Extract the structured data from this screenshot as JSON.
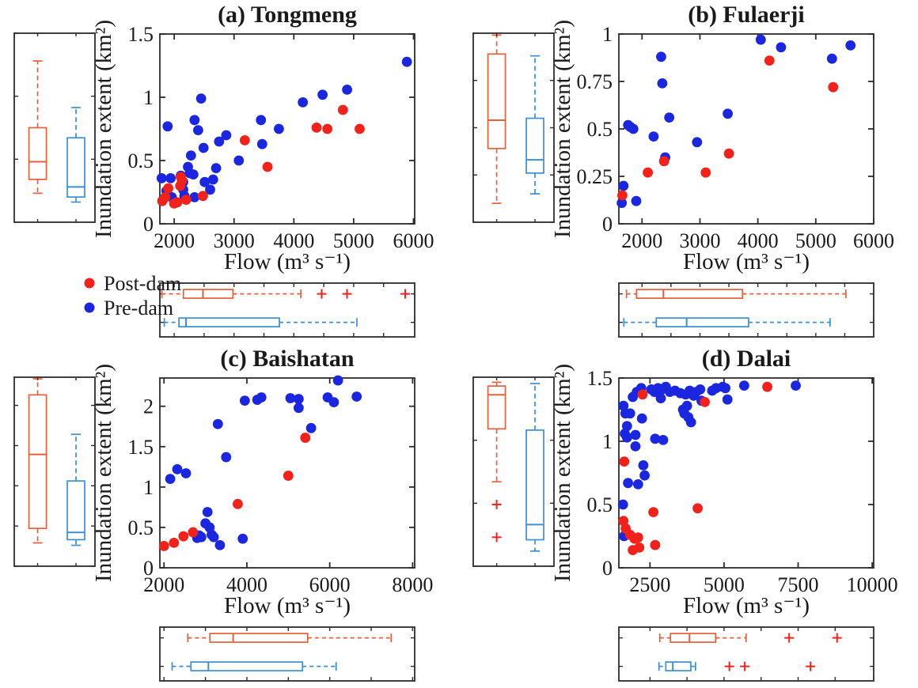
{
  "figure": {
    "background": "#ffffff",
    "axis_color": "#2b2b2b",
    "text_color": "#1a1a1a",
    "legend": {
      "items": [
        {
          "label": "Post-dam",
          "color": "#f2221a"
        },
        {
          "label": "Pre-dam",
          "color": "#1a26df"
        }
      ]
    },
    "box_colors": {
      "post": "#e2613c",
      "pre": "#3b8fd2",
      "outlier": "#f2221a"
    }
  },
  "chart_data": [
    {
      "id": "a",
      "type": "scatter",
      "title": "(a) Tongmeng",
      "xlabel": "Flow (m³ s⁻¹)",
      "ylabel": "Inundation extent (km²)",
      "xlim": [
        1760,
        6020
      ],
      "ylim": [
        0,
        1.5
      ],
      "xticks": [
        2000,
        3000,
        4000,
        5000,
        6000
      ],
      "yticks": [
        0,
        0.5,
        1,
        1.5
      ],
      "ytick_labels": [
        "0",
        "0.5",
        "1",
        "1.5"
      ],
      "legend_visible": true,
      "series": [
        {
          "name": "Pre-dam",
          "points": [
            [
              1790,
              0.36
            ],
            [
              1870,
              0.26
            ],
            [
              1890,
              0.77
            ],
            [
              1940,
              0.36
            ],
            [
              1960,
              0.21
            ],
            [
              2110,
              0.38
            ],
            [
              2150,
              0.33
            ],
            [
              2150,
              0.27
            ],
            [
              2170,
              0.22
            ],
            [
              2230,
              0.45
            ],
            [
              2260,
              0.4
            ],
            [
              2280,
              0.54
            ],
            [
              2320,
              0.39
            ],
            [
              2340,
              0.21
            ],
            [
              2340,
              0.82
            ],
            [
              2400,
              0.74
            ],
            [
              2450,
              0.99
            ],
            [
              2490,
              0.6
            ],
            [
              2510,
              0.33
            ],
            [
              2600,
              0.27
            ],
            [
              2650,
              0.35
            ],
            [
              2700,
              0.44
            ],
            [
              2750,
              0.65
            ],
            [
              2870,
              0.7
            ],
            [
              3080,
              0.5
            ],
            [
              3450,
              0.82
            ],
            [
              3470,
              0.63
            ],
            [
              3750,
              0.75
            ],
            [
              4150,
              0.96
            ],
            [
              4480,
              1.02
            ],
            [
              4890,
              1.06
            ],
            [
              5890,
              1.28
            ]
          ]
        },
        {
          "name": "Post-dam",
          "points": [
            [
              1800,
              0.18
            ],
            [
              1850,
              0.21
            ],
            [
              1900,
              0.28
            ],
            [
              2000,
              0.16
            ],
            [
              2050,
              0.17
            ],
            [
              2100,
              0.3
            ],
            [
              2110,
              0.37
            ],
            [
              2130,
              0.34
            ],
            [
              2200,
              0.19
            ],
            [
              2480,
              0.22
            ],
            [
              3180,
              0.66
            ],
            [
              3560,
              0.45
            ],
            [
              4380,
              0.76
            ],
            [
              4560,
              0.75
            ],
            [
              4820,
              0.9
            ],
            [
              5100,
              0.75
            ]
          ]
        }
      ],
      "extent_boxplot": {
        "post": {
          "whisker_low": 0.23,
          "q1": 0.34,
          "median": 0.48,
          "q3": 0.75,
          "whisker_high": 1.28,
          "outliers": []
        },
        "pre": {
          "whisker_low": 0.16,
          "q1": 0.2,
          "median": 0.28,
          "q3": 0.67,
          "whisker_high": 0.91,
          "outliers": []
        }
      },
      "flow_boxplot": {
        "post": {
          "whisker_low": 1794,
          "q1": 2153,
          "median": 2480,
          "q3": 2982,
          "whisker_high": 4117,
          "outliers": [
            4465,
            4889,
            5861
          ]
        },
        "pre": {
          "whisker_low": 1834,
          "q1": 2079,
          "median": 2197,
          "q3": 3758,
          "whisker_high": 5054,
          "outliers": []
        }
      }
    },
    {
      "id": "b",
      "type": "scatter",
      "title": "(b) Fulaerji",
      "xlabel": "Flow (m³ s⁻¹)",
      "ylabel": "Inundation extent (km²)",
      "xlim": [
        1600,
        6000
      ],
      "ylim": [
        0,
        1
      ],
      "xticks": [
        2000,
        3000,
        4000,
        5000,
        6000
      ],
      "yticks": [
        0,
        0.25,
        0.5,
        0.75,
        1
      ],
      "ytick_labels": [
        "0",
        "0.25",
        "0.5",
        "0.75",
        "1"
      ],
      "legend_visible": false,
      "series": [
        {
          "name": "Pre-dam",
          "points": [
            [
              1650,
              0.11
            ],
            [
              1680,
              0.2
            ],
            [
              1760,
              0.52
            ],
            [
              1800,
              0.51
            ],
            [
              1850,
              0.5
            ],
            [
              1900,
              0.12
            ],
            [
              2200,
              0.46
            ],
            [
              2330,
              0.88
            ],
            [
              2350,
              0.74
            ],
            [
              2400,
              0.35
            ],
            [
              2470,
              0.56
            ],
            [
              2950,
              0.43
            ],
            [
              3480,
              0.58
            ],
            [
              4050,
              0.97
            ],
            [
              4400,
              0.93
            ],
            [
              5280,
              0.87
            ],
            [
              5600,
              0.94
            ]
          ]
        },
        {
          "name": "Post-dam",
          "points": [
            [
              1660,
              0.15
            ],
            [
              2100,
              0.27
            ],
            [
              2380,
              0.33
            ],
            [
              3100,
              0.27
            ],
            [
              3500,
              0.37
            ],
            [
              4200,
              0.86
            ],
            [
              5300,
              0.72
            ]
          ]
        }
      ],
      "extent_boxplot": {
        "post": {
          "whisker_low": 0.1,
          "q1": 0.39,
          "median": 0.54,
          "q3": 0.89,
          "whisker_high": 0.99,
          "outliers": []
        },
        "pre": {
          "whisker_low": 0.15,
          "q1": 0.26,
          "median": 0.33,
          "q3": 0.55,
          "whisker_high": 0.88,
          "outliers": []
        }
      },
      "flow_boxplot": {
        "post": {
          "whisker_low": 1732,
          "q1": 1905,
          "median": 2369,
          "q3": 3735,
          "whisker_high": 5520,
          "outliers": []
        },
        "pre": {
          "whisker_low": 1686,
          "q1": 2246,
          "median": 2770,
          "q3": 3840,
          "whisker_high": 5247,
          "outliers": []
        }
      }
    },
    {
      "id": "c",
      "type": "scatter",
      "title": "(c) Baishatan",
      "xlabel": "Flow (m³ s⁻¹)",
      "ylabel": "Inundation extent (km²)",
      "xlim": [
        1900,
        8050
      ],
      "ylim": [
        0,
        2.35
      ],
      "xticks": [
        2000,
        4000,
        6000,
        8000
      ],
      "yticks": [
        0,
        0.5,
        1,
        1.5,
        2
      ],
      "ytick_labels": [
        "0",
        "0.5",
        "1",
        "1.5",
        "2"
      ],
      "legend_visible": false,
      "series": [
        {
          "name": "Pre-dam",
          "points": [
            [
              2150,
              1.1
            ],
            [
              2320,
              1.22
            ],
            [
              2530,
              1.17
            ],
            [
              2800,
              0.37
            ],
            [
              2850,
              0.4
            ],
            [
              2900,
              0.38
            ],
            [
              3000,
              0.55
            ],
            [
              3050,
              0.69
            ],
            [
              3100,
              0.5
            ],
            [
              3150,
              0.41
            ],
            [
              3200,
              0.38
            ],
            [
              3300,
              1.78
            ],
            [
              3350,
              0.28
            ],
            [
              3500,
              1.37
            ],
            [
              3900,
              0.36
            ],
            [
              3950,
              2.07
            ],
            [
              4250,
              2.08
            ],
            [
              4350,
              2.11
            ],
            [
              5050,
              2.1
            ],
            [
              5250,
              2.09
            ],
            [
              5250,
              1.98
            ],
            [
              5550,
              1.73
            ],
            [
              5950,
              2.11
            ],
            [
              6100,
              2.05
            ],
            [
              6200,
              2.32
            ],
            [
              6650,
              2.12
            ]
          ]
        },
        {
          "name": "Post-dam",
          "points": [
            [
              2000,
              0.27
            ],
            [
              2240,
              0.31
            ],
            [
              2470,
              0.39
            ],
            [
              2700,
              0.44
            ],
            [
              3780,
              0.79
            ],
            [
              5000,
              1.14
            ],
            [
              5410,
              1.61
            ]
          ]
        }
      ],
      "extent_boxplot": {
        "post": {
          "whisker_low": 0.29,
          "q1": 0.47,
          "median": 1.39,
          "q3": 2.13,
          "whisker_high": 2.33,
          "outliers": []
        },
        "pre": {
          "whisker_low": 0.26,
          "q1": 0.33,
          "median": 0.42,
          "q3": 1.06,
          "whisker_high": 1.64,
          "outliers": []
        }
      },
      "flow_boxplot": {
        "post": {
          "whisker_low": 2574,
          "q1": 3108,
          "median": 3669,
          "q3": 5468,
          "whisker_high": 7483,
          "outliers": []
        },
        "pre": {
          "whisker_low": 2196,
          "q1": 2650,
          "median": 3071,
          "q3": 5342,
          "whisker_high": 6154,
          "outliers": []
        }
      }
    },
    {
      "id": "d",
      "type": "scatter",
      "title": "(d) Dalai",
      "xlabel": "Flow (m³ s⁻¹)",
      "ylabel": "Inundation extent (km²)",
      "xlim": [
        1450,
        10050
      ],
      "ylim": [
        0,
        1.5
      ],
      "xticks": [
        2500,
        5000,
        7500,
        10000
      ],
      "yticks": [
        0,
        0.5,
        1,
        1.5
      ],
      "ytick_labels": [
        "0",
        "0.5",
        "1",
        "1.5"
      ],
      "legend_visible": false,
      "series": [
        {
          "name": "Pre-dam",
          "points": [
            [
              1590,
              0.5
            ],
            [
              1605,
              1.28
            ],
            [
              1625,
              0.25
            ],
            [
              1650,
              1.06
            ],
            [
              1670,
              1.22
            ],
            [
              1725,
              1.12
            ],
            [
              1725,
              1.03
            ],
            [
              1760,
              0.67
            ],
            [
              1830,
              1.22
            ],
            [
              1920,
              1.35
            ],
            [
              2010,
              1.05
            ],
            [
              2010,
              0.96
            ],
            [
              2055,
              1.39
            ],
            [
              2100,
              0.66
            ],
            [
              2205,
              1.42
            ],
            [
              2230,
              1.18
            ],
            [
              2275,
              0.81
            ],
            [
              2320,
              0.73
            ],
            [
              2545,
              1.41
            ],
            [
              2650,
              1.39
            ],
            [
              2675,
              1.02
            ],
            [
              2770,
              1.42
            ],
            [
              2865,
              1.34
            ],
            [
              2900,
              1.41
            ],
            [
              2945,
              1.01
            ],
            [
              3035,
              1.43
            ],
            [
              3170,
              1.39
            ],
            [
              3345,
              1.4
            ],
            [
              3525,
              1.38
            ],
            [
              3615,
              1.25
            ],
            [
              3660,
              1.22
            ],
            [
              3705,
              1.37
            ],
            [
              3750,
              1.28
            ],
            [
              3795,
              1.19
            ],
            [
              3840,
              1.4
            ],
            [
              3885,
              1.15
            ],
            [
              3975,
              1.36
            ],
            [
              4060,
              1.39
            ],
            [
              4195,
              1.41
            ],
            [
              4240,
              1.32
            ],
            [
              4600,
              1.4
            ],
            [
              4730,
              1.42
            ],
            [
              4955,
              1.43
            ],
            [
              5045,
              1.42
            ],
            [
              5115,
              1.33
            ],
            [
              5680,
              1.44
            ],
            [
              7420,
              1.44
            ]
          ]
        },
        {
          "name": "Post-dam",
          "points": [
            [
              1605,
              0.37
            ],
            [
              1630,
              0.84
            ],
            [
              1680,
              0.31
            ],
            [
              1830,
              0.26
            ],
            [
              1920,
              0.14
            ],
            [
              1980,
              0.23
            ],
            [
              2100,
              0.24
            ],
            [
              2140,
              0.16
            ],
            [
              2250,
              1.37
            ],
            [
              2615,
              0.44
            ],
            [
              2675,
              0.18
            ],
            [
              4110,
              0.47
            ],
            [
              4350,
              1.31
            ],
            [
              6460,
              1.43
            ]
          ]
        }
      ],
      "extent_boxplot": {
        "post": {
          "whisker_low": 0.67,
          "q1": 1.09,
          "median": 1.36,
          "q3": 1.43,
          "whisker_high": 1.46,
          "outliers": [
            0.49,
            0.23
          ]
        },
        "pre": {
          "whisker_low": 0.12,
          "q1": 0.21,
          "median": 0.33,
          "q3": 1.08,
          "whisker_high": 1.45,
          "outliers": []
        }
      },
      "flow_boxplot": {
        "post": {
          "whisker_low": 2831,
          "q1": 3192,
          "median": 3834,
          "q3": 4716,
          "whisker_high": 5745,
          "outliers": [
            7197,
            8815
          ]
        },
        "pre": {
          "whisker_low": 2804,
          "q1": 3034,
          "median": 3271,
          "q3": 3879,
          "whisker_high": 4037,
          "outliers": [
            5180,
            5700,
            7918
          ]
        }
      }
    }
  ]
}
